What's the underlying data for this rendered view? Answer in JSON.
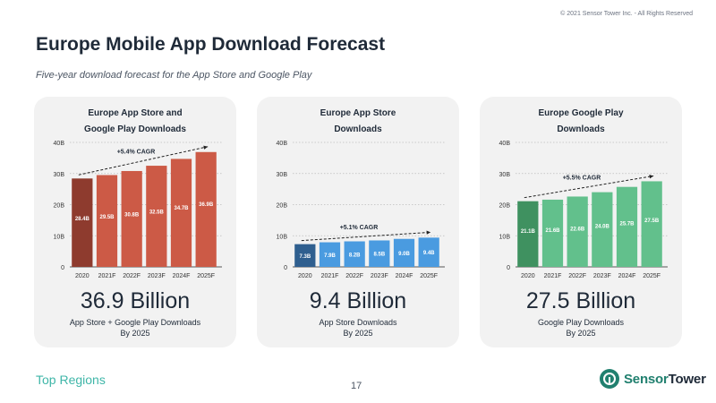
{
  "copyright": "© 2021 Sensor Tower Inc. - All Rights Reserved",
  "title": "Europe Mobile App Download Forecast",
  "subtitle": "Five-year download forecast for the App Store and Google Play",
  "footer": {
    "link": "Top Regions",
    "page": "17",
    "logo_first": "Sensor",
    "logo_second": "Tower"
  },
  "panels": [
    {
      "title_line1": "Europe App Store and",
      "title_line2": "Google Play Downloads",
      "big_number": "36.9 Billion",
      "caption_line1": "App Store + Google Play Downloads",
      "caption_line2": "By 2025"
    },
    {
      "title_line1": "Europe App Store",
      "title_line2": "Downloads",
      "big_number": "9.4 Billion",
      "caption_line1": "App Store Downloads",
      "caption_line2": "By 2025"
    },
    {
      "title_line1": "Europe Google Play",
      "title_line2": "Downloads",
      "big_number": "27.5 Billion",
      "caption_line1": "Google Play Downloads",
      "caption_line2": "By 2025"
    }
  ],
  "chart_data": [
    {
      "type": "bar",
      "title": "Europe App Store and Google Play Downloads",
      "categories": [
        "2020",
        "2021F",
        "2022F",
        "2023F",
        "2024F",
        "2025F"
      ],
      "values": [
        28.4,
        29.5,
        30.8,
        32.5,
        34.7,
        36.9
      ],
      "data_labels": [
        "28.4B",
        "29.5B",
        "30.8B",
        "32.5B",
        "34.7B",
        "36.9B"
      ],
      "ylim": [
        0,
        40
      ],
      "yticks": [
        0,
        10,
        20,
        30,
        40
      ],
      "ytick_labels": [
        "0",
        "10B",
        "20B",
        "30B",
        "40B"
      ],
      "cagr_label": "+5.4% CAGR",
      "color_first": "#8e3b2e",
      "color_rest": "#cc5a46"
    },
    {
      "type": "bar",
      "title": "Europe App Store Downloads",
      "categories": [
        "2020",
        "2021F",
        "2022F",
        "2023F",
        "2024F",
        "2025F"
      ],
      "values": [
        7.3,
        7.9,
        8.2,
        8.5,
        9.0,
        9.4
      ],
      "data_labels": [
        "7.3B",
        "7.9B",
        "8.2B",
        "8.5B",
        "9.0B",
        "9.4B"
      ],
      "ylim": [
        0,
        40
      ],
      "yticks": [
        0,
        10,
        20,
        30,
        40
      ],
      "ytick_labels": [
        "0",
        "10B",
        "20B",
        "30B",
        "40B"
      ],
      "cagr_label": "+5.1% CAGR",
      "color_first": "#2f5f8f",
      "color_rest": "#4a9be0"
    },
    {
      "type": "bar",
      "title": "Europe Google Play Downloads",
      "categories": [
        "2020",
        "2021F",
        "2022F",
        "2023F",
        "2024F",
        "2025F"
      ],
      "values": [
        21.1,
        21.6,
        22.6,
        24.0,
        25.7,
        27.5
      ],
      "data_labels": [
        "21.1B",
        "21.6B",
        "22.6B",
        "24.0B",
        "25.7B",
        "27.5B"
      ],
      "ylim": [
        0,
        40
      ],
      "yticks": [
        0,
        10,
        20,
        30,
        40
      ],
      "ytick_labels": [
        "0",
        "10B",
        "20B",
        "30B",
        "40B"
      ],
      "cagr_label": "+5.5% CAGR",
      "color_first": "#3f9160",
      "color_rest": "#62c08c"
    }
  ]
}
